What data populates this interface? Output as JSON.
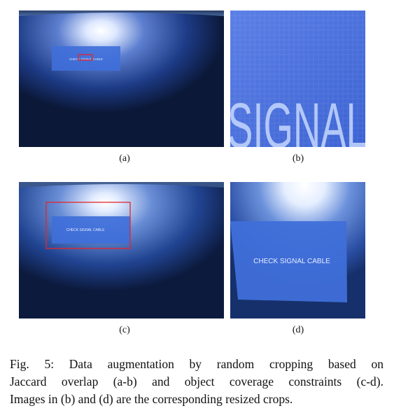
{
  "figure": {
    "panels": [
      {
        "id": "a",
        "label": "(a)",
        "screen_text": "CHECK SIGNAL CABLE"
      },
      {
        "id": "b",
        "label": "(b)",
        "screen_text": "SIGNAL"
      },
      {
        "id": "c",
        "label": "(c)",
        "screen_text": "CHECK SIGNAL CABLE"
      },
      {
        "id": "d",
        "label": "(d)",
        "screen_text": "CHECK SIGNAL CABLE"
      }
    ],
    "caption_lines": [
      "Fig. 5: Data augmentation by random cropping based on",
      "Jaccard overlap (a-b) and object coverage constraints (c-d).",
      "Images in (b) and (d) are the corresponding resized crops."
    ],
    "colors": {
      "crop_box": "#e3262b",
      "osd_box": "#3f6fd9",
      "osd_text": "#e6ecff"
    }
  }
}
